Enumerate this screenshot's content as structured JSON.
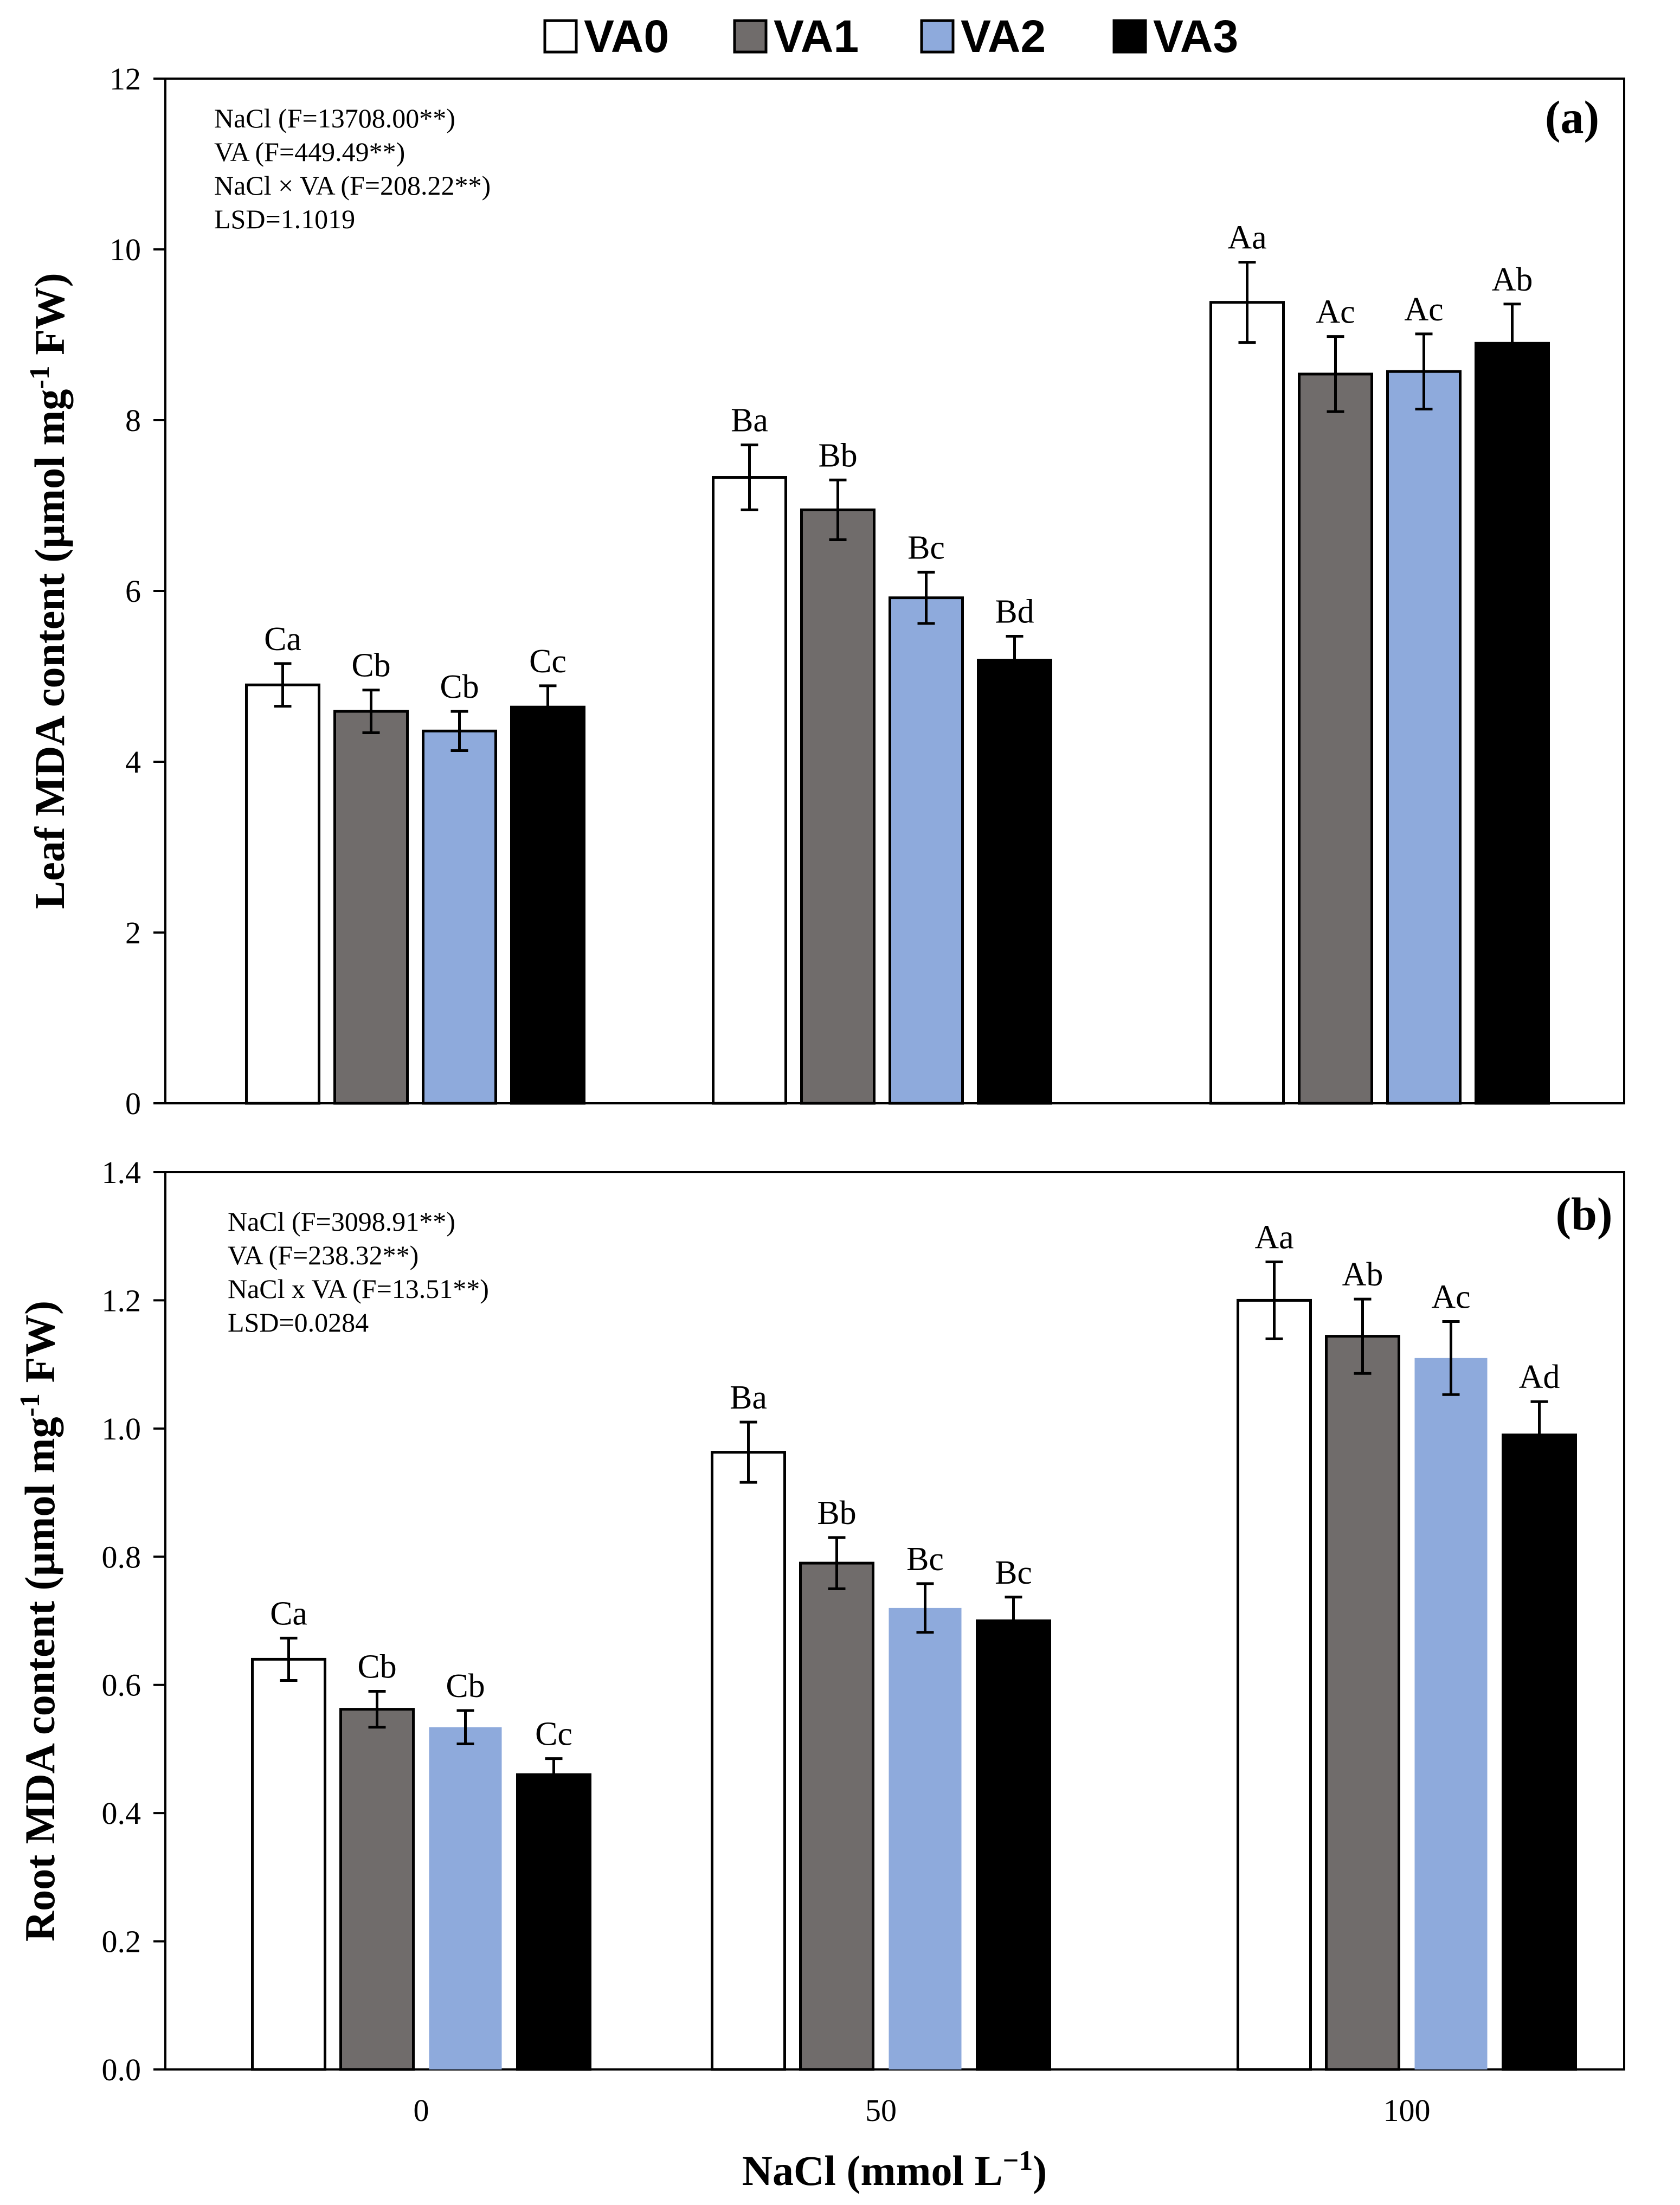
{
  "legend": [
    {
      "name": "VA0",
      "color": "#ffffff"
    },
    {
      "name": "VA1",
      "color": "#706c6b"
    },
    {
      "name": "VA2",
      "color": "#8eaadc"
    },
    {
      "name": "VA3",
      "color": "#000000"
    }
  ],
  "chart_data": [
    {
      "type": "bar",
      "panel_label": "(a)",
      "title": "",
      "ylabel_main": "Leaf  MDA content (µmol mg",
      "ylabel_sup": "-1",
      "ylabel_end": " FW)",
      "xlabel": "",
      "ylim": [
        0,
        12
      ],
      "yticks": [
        0,
        2,
        4,
        6,
        8,
        10,
        12
      ],
      "ytick_labels": [
        "0",
        "2",
        "4",
        "6",
        "8",
        "10",
        "12"
      ],
      "categories": [
        "0",
        "50",
        "100"
      ],
      "stats": [
        "NaCl (F=13708.00**)",
        "VA (F=449.49**)",
        "NaCl × VA (F=208.22**)",
        "LSD=1.1019"
      ],
      "series": [
        {
          "name": "VA0",
          "values": [
            4.9,
            7.33,
            9.38
          ],
          "errors": [
            0.25,
            0.38,
            0.47
          ],
          "labels": [
            "Ca",
            "Ba",
            "Aa"
          ]
        },
        {
          "name": "VA1",
          "values": [
            4.59,
            6.95,
            8.54
          ],
          "errors": [
            0.25,
            0.35,
            0.44
          ],
          "labels": [
            "Cb",
            "Bb",
            "Ac"
          ]
        },
        {
          "name": "VA2",
          "values": [
            4.36,
            5.92,
            8.57
          ],
          "errors": [
            0.23,
            0.3,
            0.44
          ],
          "labels": [
            "Cb",
            "Bc",
            "Ac"
          ]
        },
        {
          "name": "VA3",
          "values": [
            4.64,
            5.19,
            8.9
          ],
          "errors": [
            0.25,
            0.28,
            0.46
          ],
          "labels": [
            "Cc",
            "Bd",
            "Ab"
          ]
        }
      ]
    },
    {
      "type": "bar",
      "panel_label": "(b)",
      "title": "",
      "ylabel_main": "Root MDA content (µmol mg",
      "ylabel_sup": "-1",
      "ylabel_end": " FW)",
      "xlabel_main": "NaCl (mmol L",
      "xlabel_sup": "−1",
      "xlabel_end": ")",
      "ylim": [
        0,
        1.4
      ],
      "yticks": [
        0,
        0.2,
        0.4,
        0.6,
        0.8,
        1.0,
        1.2,
        1.4
      ],
      "ytick_labels": [
        "0.0",
        "0.2",
        "0.4",
        "0.6",
        "0.8",
        "1.0",
        "1.2",
        "1.4"
      ],
      "categories": [
        "0",
        "50",
        "100"
      ],
      "stats": [
        "NaCl (F=3098.91**)",
        "VA (F=238.32**)",
        "NaCl x VA (F=13.51**)",
        "LSD=0.0284"
      ],
      "series": [
        {
          "name": "VA0",
          "values": [
            0.64,
            0.963,
            1.2
          ],
          "errors": [
            0.033,
            0.047,
            0.06
          ],
          "labels": [
            "Ca",
            "Ba",
            "Aa"
          ]
        },
        {
          "name": "VA1",
          "values": [
            0.562,
            0.79,
            1.144
          ],
          "errors": [
            0.028,
            0.04,
            0.058
          ],
          "labels": [
            "Cb",
            "Bb",
            "Ab"
          ]
        },
        {
          "name": "VA2",
          "values": [
            0.534,
            0.72,
            1.11
          ],
          "errors": [
            0.026,
            0.038,
            0.057
          ],
          "labels": [
            "Cb",
            "Bc",
            "Ac"
          ]
        },
        {
          "name": "VA3",
          "values": [
            0.46,
            0.7,
            0.99
          ],
          "errors": [
            0.025,
            0.037,
            0.052
          ],
          "labels": [
            "Cc",
            "Bc",
            "Ad"
          ]
        }
      ]
    }
  ]
}
